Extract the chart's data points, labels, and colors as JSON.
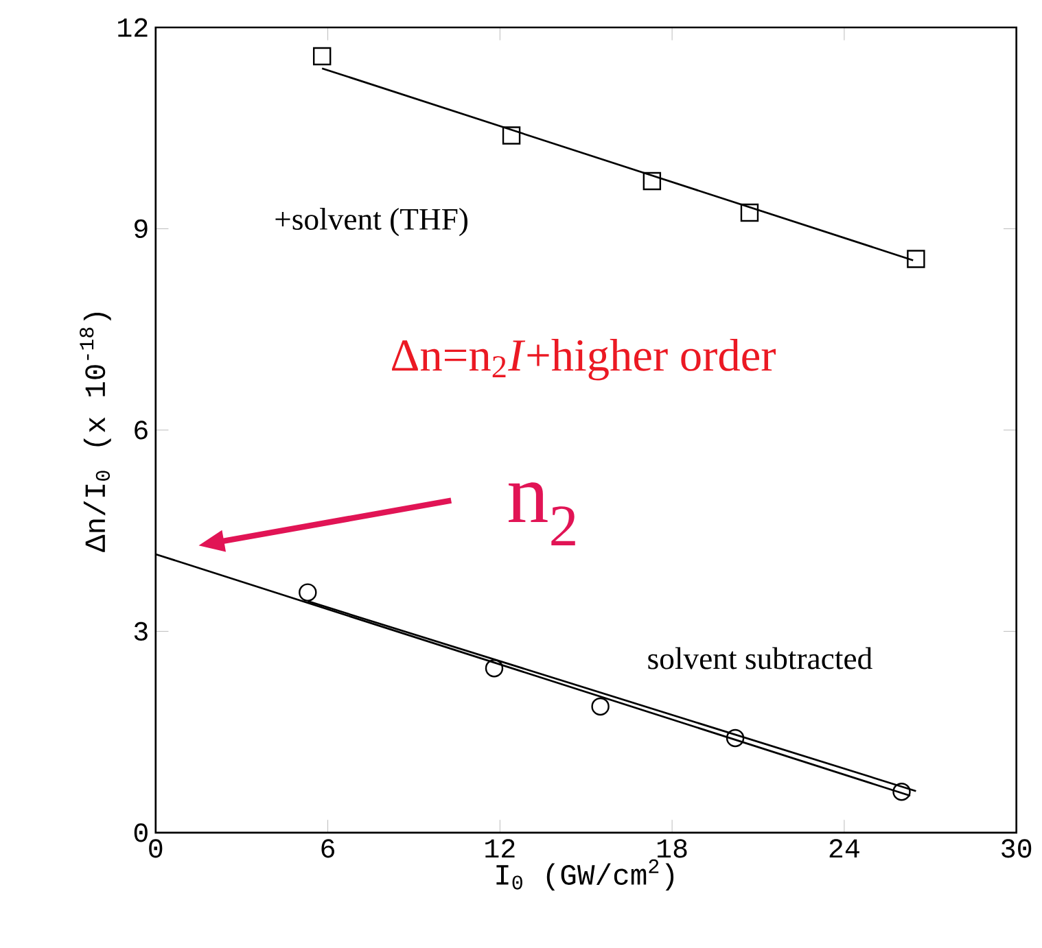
{
  "chart_data": {
    "type": "scatter",
    "xlabel": "I$_{0}$ (GW/cm$^{2}$)",
    "ylabel": "Δn/I$_{0}$ (x 10$^{-18}$)",
    "xlim": [
      0,
      30
    ],
    "xticks": [
      0,
      6,
      12,
      18,
      24,
      30
    ],
    "ylim": [
      0,
      12
    ],
    "yticks": [
      0,
      3,
      6,
      9,
      12
    ],
    "series": [
      {
        "marker": "square",
        "color": "#000000",
        "x": [
          5.8,
          12.4,
          17.3,
          20.7,
          26.5
        ],
        "values": [
          11.57,
          10.39,
          9.71,
          9.24,
          8.55
        ]
      },
      {
        "type": "line",
        "marker": "none",
        "color": "#000000",
        "x": [
          5.8,
          26.4
        ],
        "values": [
          11.39,
          8.53
        ]
      },
      {
        "marker": "circle",
        "color": "#000000",
        "x": [
          5.3,
          11.8,
          15.5,
          20.2,
          26.0
        ],
        "values": [
          3.58,
          2.45,
          1.88,
          1.41,
          0.61
        ]
      },
      {
        "type": "line",
        "marker": "none",
        "color": "#000000",
        "x": [
          0,
          26.3
        ],
        "values": [
          4.15,
          0.55
        ]
      },
      {
        "type": "line",
        "marker": "none",
        "color": "#000000",
        "x": [
          5.3,
          26.5
        ],
        "values": [
          3.45,
          0.62
        ]
      }
    ],
    "annotations": [
      "+solvent (THF)",
      "Δn=n$_{2}$*I*+higher order",
      "n$_{2}$",
      "solvent subtracted"
    ]
  }
}
